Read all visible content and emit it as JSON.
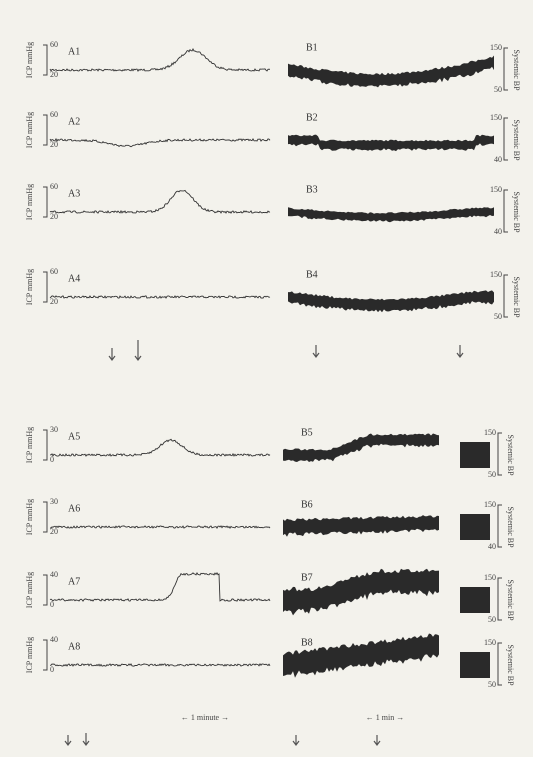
{
  "top": {
    "panels": [
      {
        "icp_label": "A1",
        "icp_axis": "ICP mmHg",
        "icp_max": "60",
        "icp_min": "20",
        "bp_label": "B1",
        "bp_axis": "Systemic BP",
        "bp_max": "150",
        "bp_min": "50"
      },
      {
        "icp_label": "A2",
        "icp_axis": "ICP mmHg",
        "icp_max": "60",
        "icp_min": "20",
        "bp_label": "B2",
        "bp_axis": "Systemic BP",
        "bp_max": "150",
        "bp_min": "40"
      },
      {
        "icp_label": "A3",
        "icp_axis": "ICP mmHg",
        "icp_max": "60",
        "icp_min": "20",
        "bp_label": "B3",
        "bp_axis": "Systemic BP",
        "bp_max": "150",
        "bp_min": "40"
      },
      {
        "icp_label": "A4",
        "icp_axis": "ICP mmHg",
        "icp_max": "60",
        "icp_min": "20",
        "bp_label": "B4",
        "bp_axis": "Systemic BP",
        "bp_max": "150",
        "bp_min": "50"
      }
    ]
  },
  "bottom": {
    "panels": [
      {
        "icp_label": "A5",
        "icp_axis": "ICP mmHg",
        "icp_max": "30",
        "icp_min": "0",
        "bp_label": "B5",
        "bp_axis": "Systemic BP",
        "bp_max": "150",
        "bp_min": "50"
      },
      {
        "icp_label": "A6",
        "icp_axis": "ICP mmHg",
        "icp_max": "30",
        "icp_min": "20",
        "bp_label": "B6",
        "bp_axis": "Systemic BP",
        "bp_max": "150",
        "bp_min": "40"
      },
      {
        "icp_label": "A7",
        "icp_axis": "ICP mmHg",
        "icp_max": "40",
        "icp_min": "0",
        "bp_label": "B7",
        "bp_axis": "Systemic BP",
        "bp_max": "150",
        "bp_min": "50"
      },
      {
        "icp_label": "A8",
        "icp_axis": "ICP mmHg",
        "icp_max": "40",
        "icp_min": "0",
        "bp_label": "B8",
        "bp_axis": "Systemic BP",
        "bp_max": "150",
        "bp_min": "50"
      }
    ],
    "time_left": "← 1 minute →",
    "time_right": "← 1 min →"
  }
}
